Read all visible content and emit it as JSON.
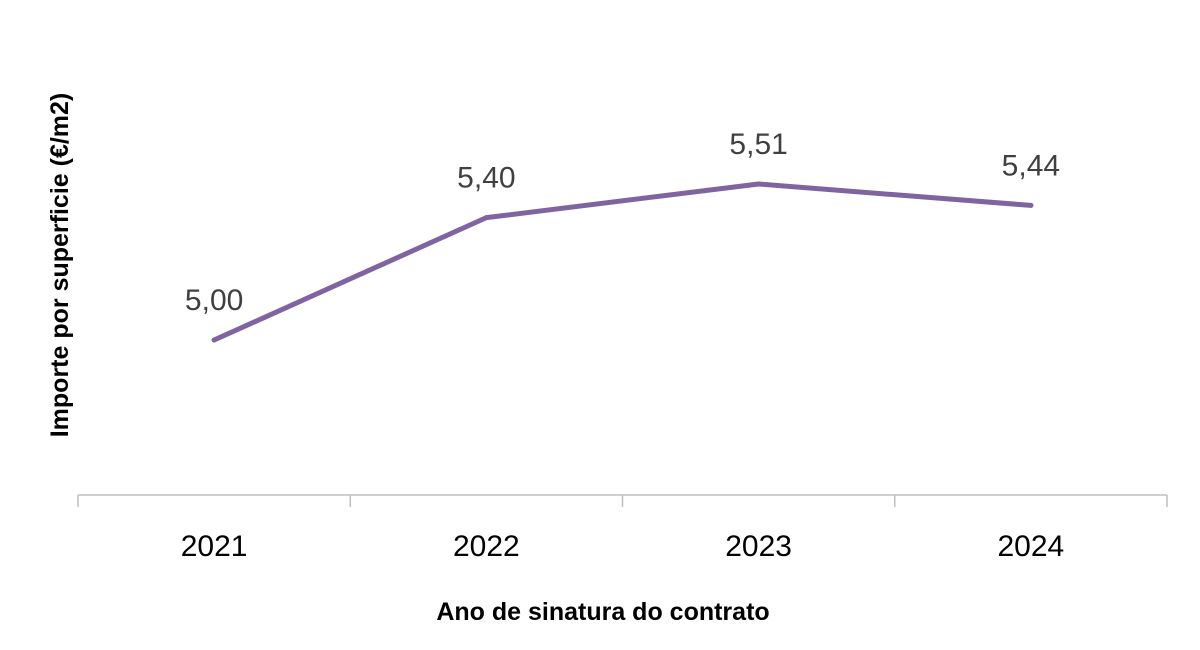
{
  "chart_data": {
    "type": "line",
    "categories": [
      "2021",
      "2022",
      "2023",
      "2024"
    ],
    "series": [
      {
        "name": "Importe por superficie (€/m2)",
        "values": [
          5.0,
          5.4,
          5.51,
          5.44
        ],
        "labels": [
          "5,00",
          "5,40",
          "5,51",
          "5,44"
        ]
      }
    ],
    "title": "",
    "xlabel": "Ano de sinatura do contrato",
    "ylabel": "Importe por superficie (€/m2)",
    "ylim": [
      4.5,
      5.9
    ],
    "grid": false,
    "legend": "none"
  },
  "colors": {
    "line": "#8064A2",
    "axis": "#BFBFBF",
    "data_label": "#404040",
    "text": "#000000"
  }
}
